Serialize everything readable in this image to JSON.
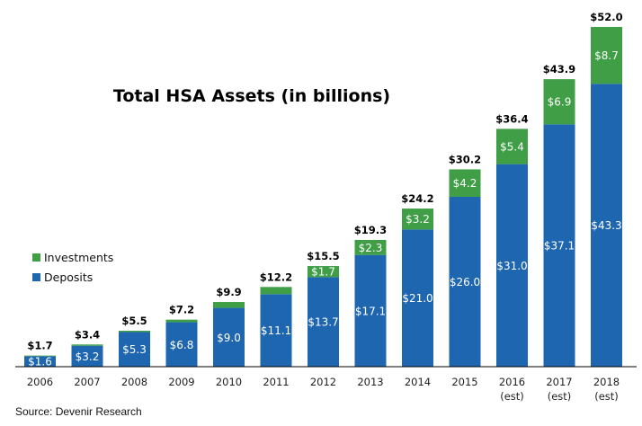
{
  "chart_data": {
    "type": "bar",
    "stacked": true,
    "title": "Total HSA Assets (in billions)",
    "xlabel": "",
    "ylabel": "",
    "categories": [
      "2006",
      "2007",
      "2008",
      "2009",
      "2010",
      "2011",
      "2012",
      "2013",
      "2014",
      "2015",
      "2016 (est)",
      "2017 (est)",
      "2018 (est)"
    ],
    "category_lines": [
      [
        "2006"
      ],
      [
        "2007"
      ],
      [
        "2008"
      ],
      [
        "2009"
      ],
      [
        "2010"
      ],
      [
        "2011"
      ],
      [
        "2012"
      ],
      [
        "2013"
      ],
      [
        "2014"
      ],
      [
        "2015"
      ],
      [
        "2016",
        "(est)"
      ],
      [
        "2017",
        "(est)"
      ],
      [
        "2018",
        "(est)"
      ]
    ],
    "series": [
      {
        "name": "Deposits",
        "color": "#1f66b0",
        "values": [
          1.6,
          3.2,
          5.3,
          6.8,
          9.0,
          11.1,
          13.7,
          17.1,
          21.0,
          26.0,
          31.0,
          37.1,
          43.3
        ],
        "labels": [
          "$1.6",
          "$3.2",
          "$5.3",
          "$6.8",
          "$9.0",
          "$11.1",
          "$13.7",
          "$17.1",
          "$21.0",
          "$26.0",
          "$31.0",
          "$37.1",
          "$43.3"
        ]
      },
      {
        "name": "Investments",
        "color": "#3f9e46",
        "values": [
          0.1,
          0.2,
          0.2,
          0.4,
          0.9,
          1.1,
          1.7,
          2.3,
          3.2,
          4.2,
          5.4,
          6.9,
          8.7
        ],
        "labels": [
          "",
          "",
          "",
          "",
          "",
          "",
          "$1.7",
          "$2.3",
          "$3.2",
          "$4.2",
          "$5.4",
          "$6.9",
          "$8.7"
        ]
      }
    ],
    "totals": [
      1.7,
      3.4,
      5.5,
      7.2,
      9.9,
      12.2,
      15.5,
      19.3,
      24.2,
      30.2,
      36.4,
      43.9,
      52.0
    ],
    "total_labels": [
      "$1.7",
      "$3.4",
      "$5.5",
      "$7.2",
      "$9.9",
      "$12.2",
      "$15.5",
      "$19.3",
      "$24.2",
      "$30.2",
      "$36.4",
      "$43.9",
      "$52.0"
    ],
    "legend": [
      {
        "name": "Investments",
        "color": "#3f9e46"
      },
      {
        "name": "Deposits",
        "color": "#1f66b0"
      }
    ],
    "legend_position": "left-middle",
    "grid": false,
    "ylim": [
      0,
      52
    ]
  },
  "source": "Source: Devenir Research"
}
